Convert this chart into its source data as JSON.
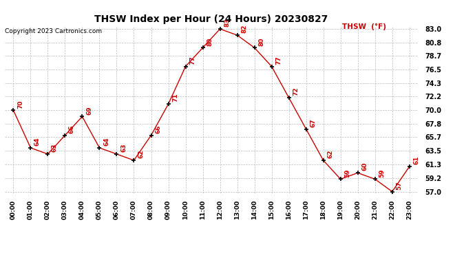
{
  "title": "THSW Index per Hour (24 Hours) 20230827",
  "copyright": "Copyright 2023 Cartronics.com",
  "legend_label": "THSW  (°F)",
  "hours": [
    0,
    1,
    2,
    3,
    4,
    5,
    6,
    7,
    8,
    9,
    10,
    11,
    12,
    13,
    14,
    15,
    16,
    17,
    18,
    19,
    20,
    21,
    22,
    23
  ],
  "values": [
    70,
    64,
    63,
    66,
    69,
    64,
    63,
    62,
    66,
    71,
    77,
    80,
    83,
    82,
    80,
    77,
    72,
    67,
    62,
    59,
    60,
    59,
    57,
    61
  ],
  "line_color": "#cc0000",
  "marker_color": "#000000",
  "label_color": "#cc0000",
  "background_color": "#ffffff",
  "grid_color": "#bbbbbb",
  "title_color": "#000000",
  "copyright_color": "#000000",
  "ymin": 57.0,
  "ymax": 83.0,
  "ytick_values": [
    57.0,
    59.2,
    61.3,
    63.5,
    65.7,
    67.8,
    70.0,
    72.2,
    74.3,
    76.5,
    78.7,
    80.8,
    83.0
  ],
  "ytick_labels": [
    "57.0",
    "59.2",
    "61.3",
    "63.5",
    "65.7",
    "67.8",
    "70.0",
    "72.2",
    "74.3",
    "76.5",
    "78.7",
    "80.8",
    "83.0"
  ]
}
